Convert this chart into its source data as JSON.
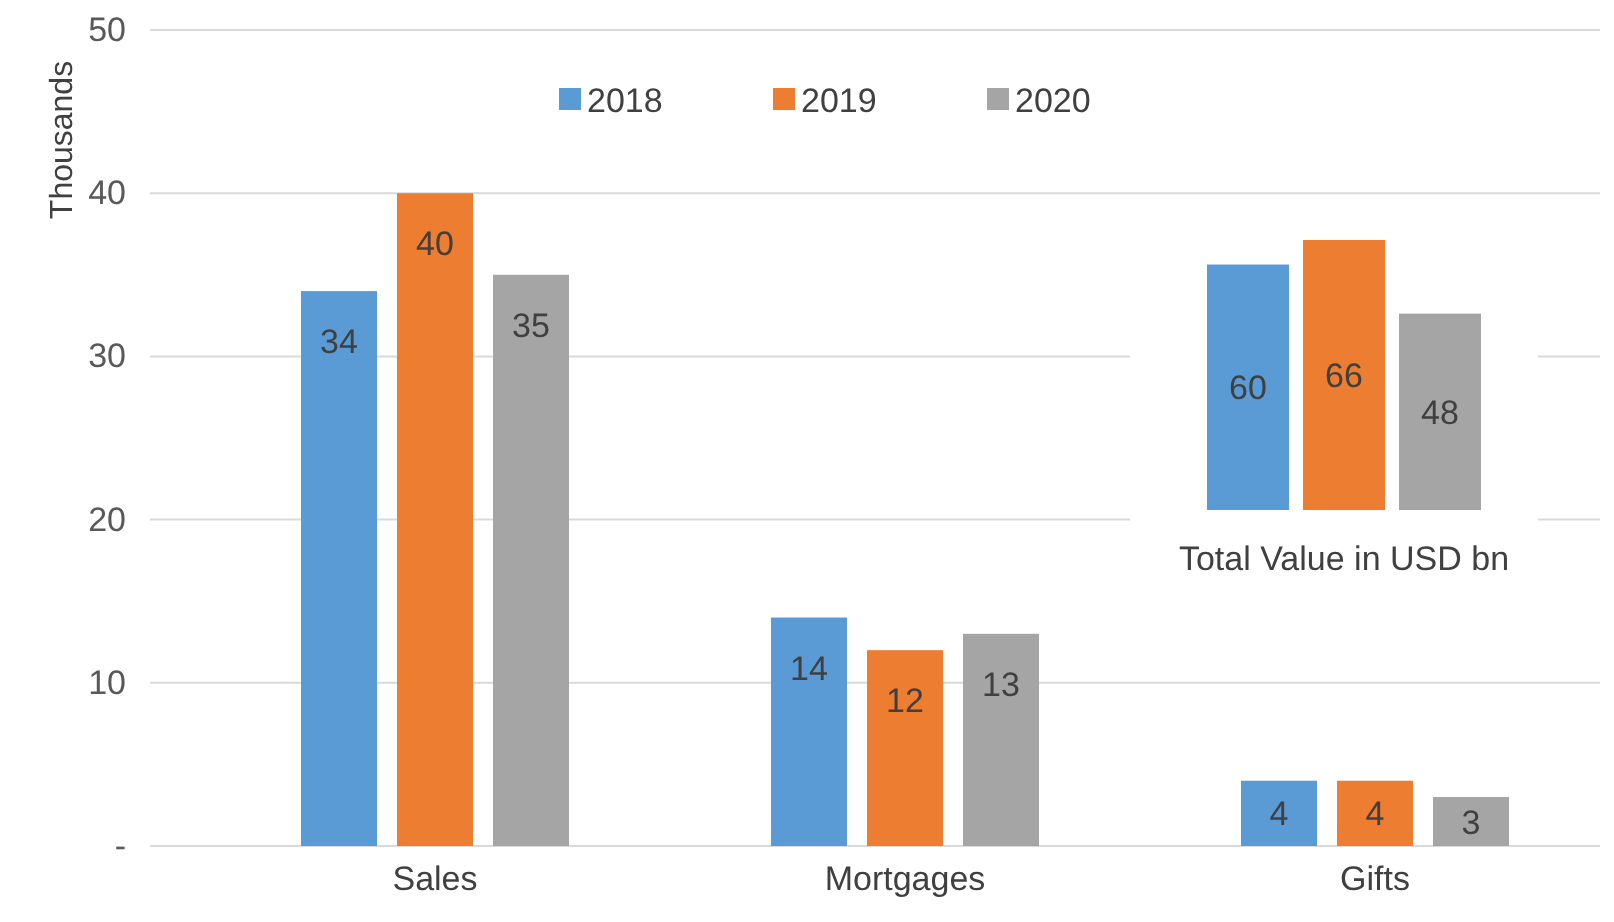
{
  "chart_data": [
    {
      "type": "bar",
      "ylabel": "Thousands",
      "categories": [
        "Sales",
        "Mortgages",
        "Gifts"
      ],
      "series": [
        {
          "name": "2018",
          "color": "#5b9bd5",
          "values": [
            34,
            14,
            4
          ]
        },
        {
          "name": "2019",
          "color": "#ed7d31",
          "values": [
            40,
            12,
            4
          ]
        },
        {
          "name": "2020",
          "color": "#a5a5a5",
          "values": [
            35,
            13,
            3
          ]
        }
      ],
      "ylim": [
        0,
        50
      ],
      "yticks": [
        {
          "value": 0,
          "label": "-"
        },
        10,
        20,
        30,
        40,
        50
      ],
      "grid": "y",
      "legend": "top",
      "data_labels": true
    },
    {
      "type": "bar",
      "title": "Total Value in USD bn",
      "categories": [
        null,
        null,
        null
      ],
      "values": [
        60,
        66,
        48
      ],
      "colors": [
        "#5b9bd5",
        "#ed7d31",
        "#a5a5a5"
      ],
      "data_labels": true
    }
  ]
}
